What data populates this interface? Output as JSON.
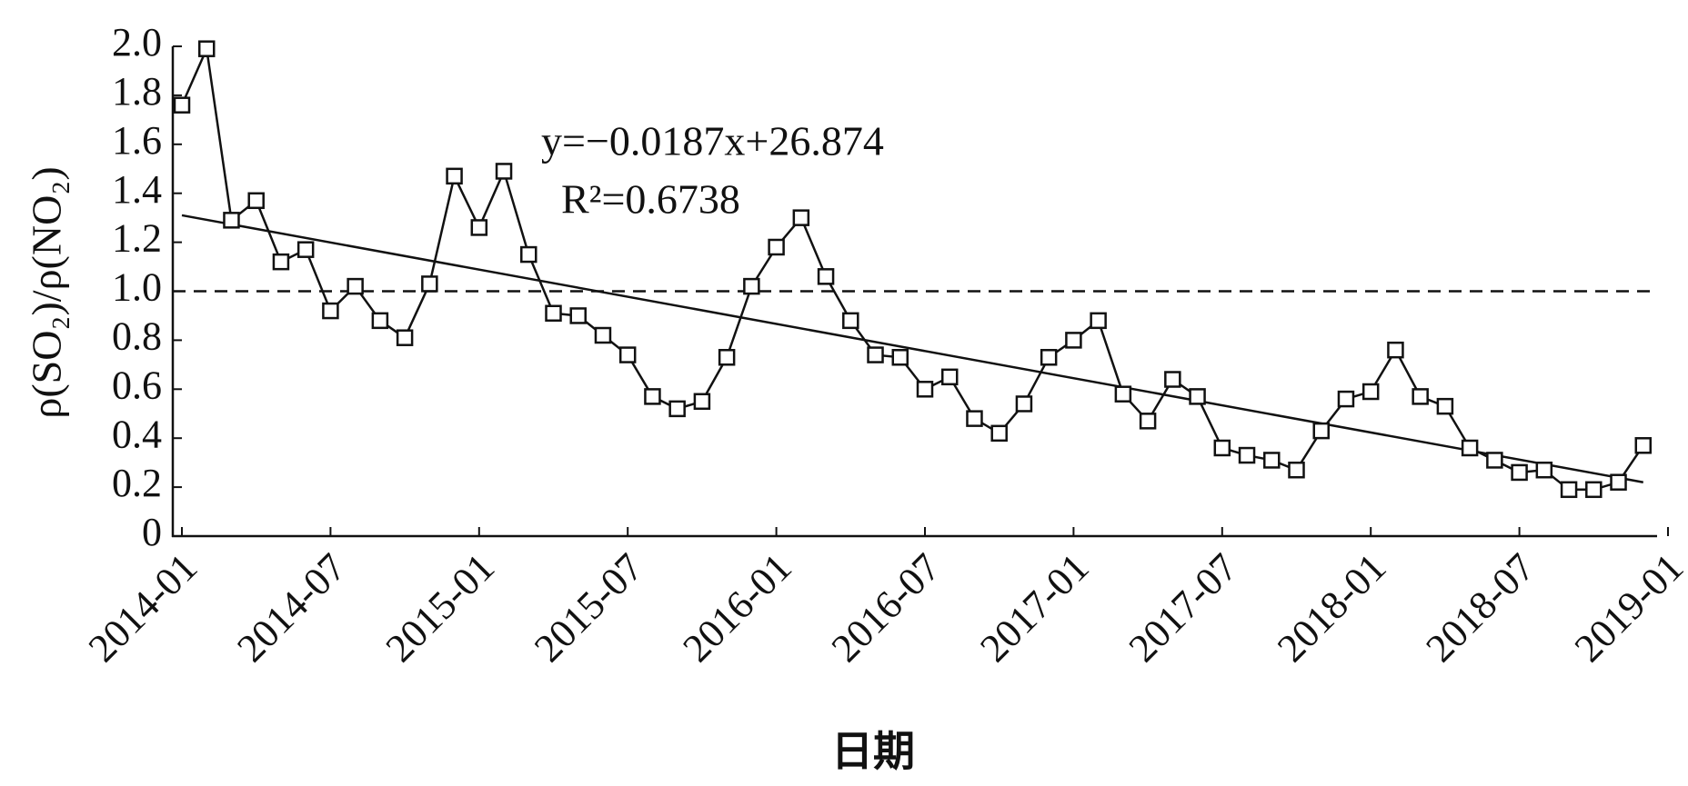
{
  "chart_data": {
    "type": "line",
    "y_label": "ρ(SO₂)/ρ(NO₂)",
    "x_label": "日期",
    "annotations": [
      "y=−0.0187x+26.874",
      "R²=0.6738"
    ],
    "x": [
      "2014-01",
      "2014-02",
      "2014-03",
      "2014-04",
      "2014-05",
      "2014-06",
      "2014-07",
      "2014-08",
      "2014-09",
      "2014-10",
      "2014-11",
      "2014-12",
      "2015-01",
      "2015-02",
      "2015-03",
      "2015-04",
      "2015-05",
      "2015-06",
      "2015-07",
      "2015-08",
      "2015-09",
      "2015-10",
      "2015-11",
      "2015-12",
      "2016-01",
      "2016-02",
      "2016-03",
      "2016-04",
      "2016-05",
      "2016-06",
      "2016-07",
      "2016-08",
      "2016-09",
      "2016-10",
      "2016-11",
      "2016-12",
      "2017-01",
      "2017-02",
      "2017-03",
      "2017-04",
      "2017-05",
      "2017-06",
      "2017-07",
      "2017-08",
      "2017-09",
      "2017-10",
      "2017-11",
      "2017-12",
      "2018-01",
      "2018-02",
      "2018-03",
      "2018-04",
      "2018-05",
      "2018-06",
      "2018-07",
      "2018-08",
      "2018-09",
      "2018-10",
      "2018-11",
      "2018-12"
    ],
    "series": [
      {
        "color": "#111111",
        "values": [
          1.76,
          1.99,
          1.29,
          1.37,
          1.12,
          1.17,
          0.92,
          1.02,
          0.88,
          0.81,
          1.03,
          1.47,
          1.26,
          1.49,
          1.15,
          0.91,
          0.9,
          0.82,
          0.74,
          0.57,
          0.52,
          0.55,
          0.73,
          1.02,
          1.18,
          1.3,
          1.06,
          0.88,
          0.74,
          0.73,
          0.6,
          0.65,
          0.48,
          0.42,
          0.54,
          0.73,
          0.8,
          0.88,
          0.58,
          0.47,
          0.64,
          0.57,
          0.36,
          0.33,
          0.31,
          0.27,
          0.43,
          0.56,
          0.59,
          0.76,
          0.57,
          0.53,
          0.36,
          0.31,
          0.26,
          0.27,
          0.19,
          0.19,
          0.22,
          0.37
        ]
      }
    ],
    "trend_line": {
      "x": [
        "2014-01",
        "2018-12"
      ],
      "values": [
        1.31,
        0.22
      ]
    },
    "reference_line": 1,
    "xlim": [
      "2014-01",
      "2019-01"
    ],
    "xticks": [
      "2014-01",
      "2014-07",
      "2015-01",
      "2015-07",
      "2016-01",
      "2016-07",
      "2017-01",
      "2017-07",
      "2018-01",
      "2018-07",
      "2019-01"
    ],
    "ylim": [
      0,
      2
    ],
    "yticks": [
      0,
      0.2,
      0.4,
      0.6,
      0.8,
      {
        "value": 1,
        "label": "1.0"
      },
      1.2,
      1.4,
      1.6,
      1.8,
      {
        "value": 2,
        "label": "2.0"
      }
    ]
  }
}
